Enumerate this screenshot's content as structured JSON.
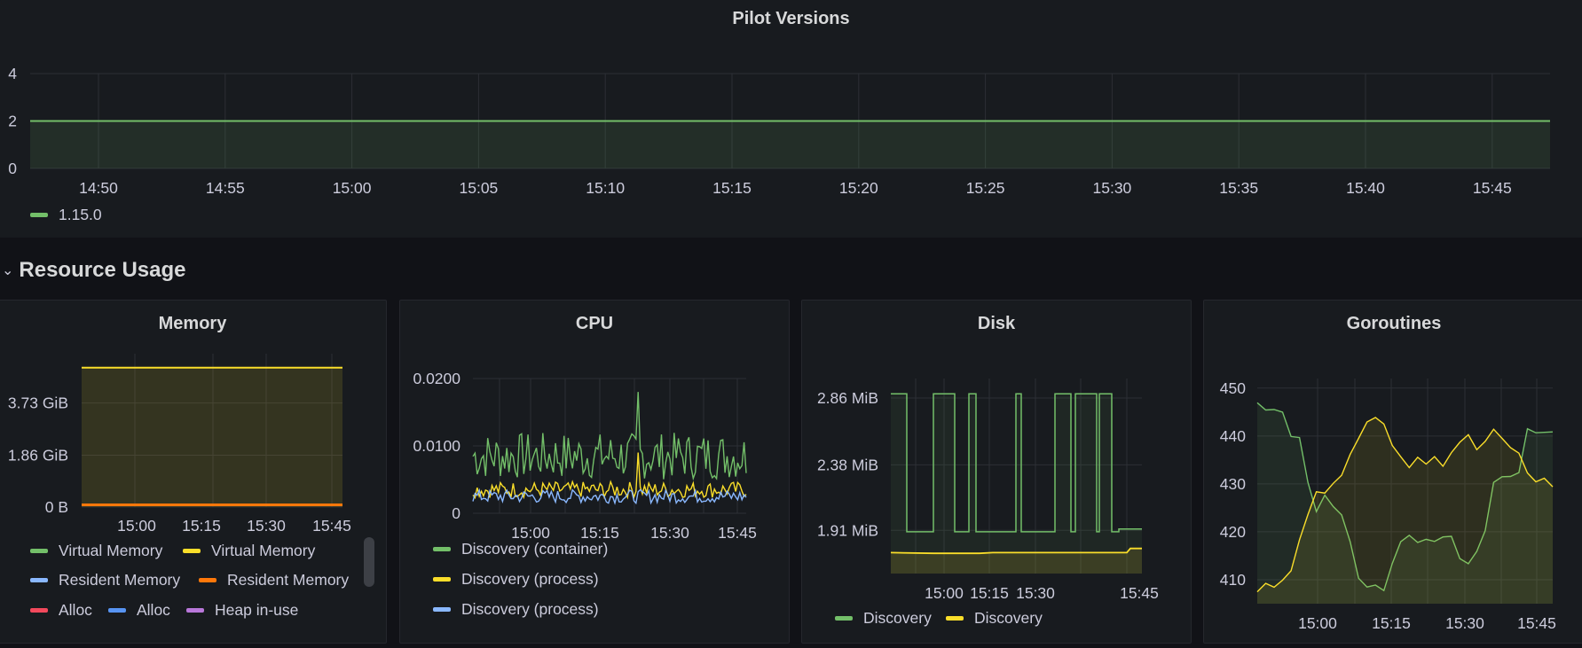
{
  "pilot_versions": {
    "title": "Pilot Versions",
    "chart_data": {
      "type": "area",
      "title": "Pilot Versions",
      "x_ticks": [
        "14:50",
        "14:55",
        "15:00",
        "15:05",
        "15:10",
        "15:15",
        "15:20",
        "15:25",
        "15:30",
        "15:35",
        "15:40",
        "15:45"
      ],
      "y_ticks": [
        "0",
        "2",
        "4"
      ],
      "ylim": [
        0,
        4
      ],
      "series": [
        {
          "name": "1.15.0",
          "color": "#73bf69",
          "values": [
            2,
            2,
            2,
            2,
            2,
            2,
            2,
            2,
            2,
            2,
            2,
            2,
            2,
            2
          ]
        }
      ],
      "legend_placement": "bottom-left"
    },
    "legend": [
      {
        "label": "1.15.0",
        "color": "#73bf69"
      }
    ]
  },
  "row": {
    "chevron": "⌄",
    "title": "Resource Usage"
  },
  "memory": {
    "title": "Memory",
    "chart_data": {
      "type": "area",
      "title": "Memory",
      "x_ticks": [
        "15:00",
        "15:15",
        "15:30",
        "15:45"
      ],
      "y_ticks": [
        "0 B",
        "1.86 GiB",
        "3.73 GiB"
      ],
      "ylim_gib": [
        0,
        5.5
      ],
      "series": [
        {
          "name": "Virtual Memory",
          "color": "#fade2a",
          "value_gib": 5.0
        },
        {
          "name": "Resident Memory",
          "color": "#ff780a",
          "value_gib": 0.08
        }
      ]
    },
    "legend": [
      {
        "label": "Virtual Memory",
        "color": "#73bf69"
      },
      {
        "label": "Virtual Memory",
        "color": "#fade2a"
      },
      {
        "label": "Resident Memory",
        "color": "#8ab8ff"
      },
      {
        "label": "Resident Memory",
        "color": "#ff780a"
      },
      {
        "label": "Alloc",
        "color": "#f2495c"
      },
      {
        "label": "Alloc",
        "color": "#5794f2"
      },
      {
        "label": "Heap in-use",
        "color": "#b877d9"
      }
    ]
  },
  "cpu": {
    "title": "CPU",
    "chart_data": {
      "type": "line",
      "title": "CPU",
      "x_ticks": [
        "15:00",
        "15:15",
        "15:30",
        "15:45"
      ],
      "y_ticks": [
        "0",
        "0.0100",
        "0.0200"
      ],
      "ylim": [
        0,
        0.02
      ],
      "series": [
        {
          "name": "Discovery (container)",
          "color": "#73bf69",
          "base": 0.0085,
          "amp": 0.0035
        },
        {
          "name": "Discovery (process)",
          "color": "#fade2a",
          "base": 0.0035,
          "amp": 0.0012
        },
        {
          "name": "Discovery (process)",
          "color": "#8ab8ff",
          "base": 0.0025,
          "amp": 0.001
        }
      ]
    },
    "legend": [
      {
        "label": "Discovery (container)",
        "color": "#73bf69"
      },
      {
        "label": "Discovery (process)",
        "color": "#fade2a"
      },
      {
        "label": "Discovery (process)",
        "color": "#8ab8ff"
      }
    ]
  },
  "disk": {
    "title": "Disk",
    "chart_data": {
      "type": "area",
      "title": "Disk",
      "x_ticks": [
        "15:00",
        "15:15",
        "15:30",
        "15:45"
      ],
      "y_ticks": [
        "1.91 MiB",
        "2.38 MiB",
        "2.86 MiB"
      ],
      "ylim_mib": [
        1.6,
        3.0
      ],
      "series": [
        {
          "name": "Discovery",
          "color": "#73bf69"
        },
        {
          "name": "Discovery",
          "color": "#fade2a"
        }
      ]
    },
    "legend": [
      {
        "label": "Discovery",
        "color": "#73bf69"
      },
      {
        "label": "Discovery",
        "color": "#fade2a"
      }
    ]
  },
  "goroutines": {
    "title": "Goroutines",
    "chart_data": {
      "type": "line",
      "title": "Goroutines",
      "x_ticks": [
        "15:00",
        "15:15",
        "15:30",
        "15:45"
      ],
      "y_ticks": [
        "410",
        "420",
        "430",
        "440",
        "450"
      ],
      "ylim": [
        405,
        452
      ],
      "series": [
        {
          "color": "#73bf69",
          "values": [
            447,
            445,
            446,
            445,
            440,
            440,
            430,
            424,
            428,
            425,
            424,
            418,
            410,
            409,
            409,
            408,
            414,
            418,
            419,
            418,
            419,
            418,
            419,
            419,
            415,
            413,
            416,
            420,
            430,
            432,
            431,
            432,
            441,
            441,
            441,
            441
          ]
        },
        {
          "color": "#fade2a",
          "values": [
            407,
            409,
            408,
            410,
            412,
            418,
            424,
            428,
            428,
            430,
            432,
            436,
            440,
            443,
            444,
            443,
            438,
            436,
            434,
            435,
            434,
            436,
            434,
            436,
            439,
            440,
            437,
            439,
            441,
            440,
            438,
            437,
            432,
            430,
            431,
            430
          ]
        }
      ]
    }
  }
}
